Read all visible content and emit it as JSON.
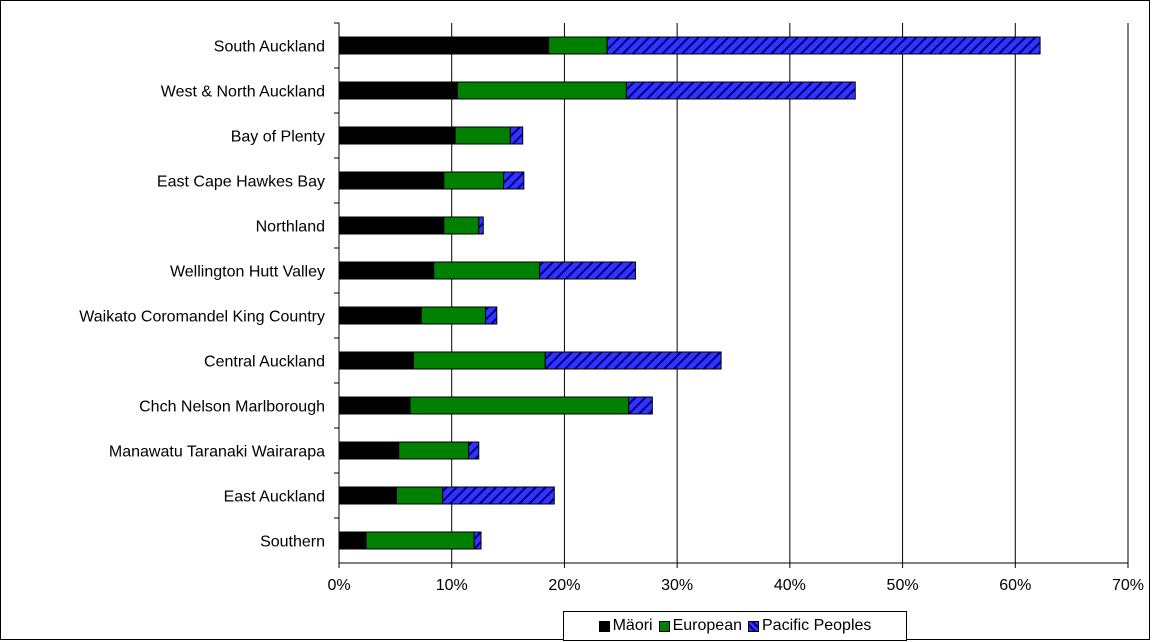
{
  "chart_data": {
    "type": "bar",
    "orientation": "horizontal",
    "stacked": true,
    "categories": [
      "South Auckland",
      "West & North Auckland",
      "Bay of Plenty",
      "East Cape Hawkes Bay",
      "Northland",
      "Wellington Hutt Valley",
      "Waikato Coromandel King Country",
      "Central Auckland",
      "Chch Nelson Marlborough",
      "Manawatu Taranaki Wairarapa",
      "East Auckland",
      "Southern"
    ],
    "series": [
      {
        "name": "Mäori",
        "color": "#000000",
        "pattern": "solid",
        "values": [
          18.6,
          10.5,
          10.3,
          9.3,
          9.3,
          8.4,
          7.3,
          6.6,
          6.3,
          5.3,
          5.1,
          2.4
        ]
      },
      {
        "name": "European",
        "color": "#008000",
        "pattern": "solid",
        "values": [
          5.2,
          15.0,
          4.9,
          5.3,
          3.1,
          9.4,
          5.7,
          11.7,
          19.4,
          6.2,
          4.1,
          9.6
        ]
      },
      {
        "name": "Pacific Peoples",
        "color": "#3333ff",
        "pattern": "diagonal-hatch",
        "values": [
          38.4,
          20.3,
          1.1,
          1.8,
          0.4,
          8.5,
          1.0,
          15.6,
          2.1,
          0.9,
          9.9,
          0.6
        ]
      }
    ],
    "x_ticks": [
      "0%",
      "10%",
      "20%",
      "30%",
      "40%",
      "50%",
      "60%",
      "70%"
    ],
    "xlim": [
      0,
      70
    ],
    "x_unit": "percent",
    "grid": "vertical",
    "legend_position": "bottom"
  }
}
